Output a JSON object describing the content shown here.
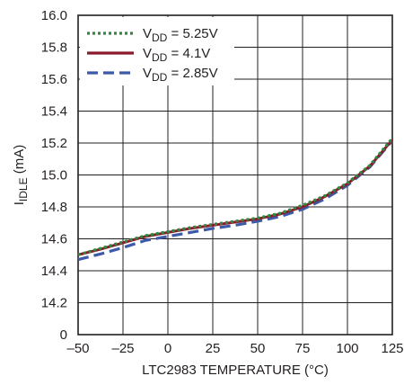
{
  "chart_data": {
    "type": "line",
    "xlabel": "LTC2983 TEMPERATURE (°C)",
    "ylabel": {
      "main": "I",
      "sub": "IDLE",
      "unit": " (mA)"
    },
    "xlim": [
      -50,
      125
    ],
    "ylim": [
      0,
      16.0
    ],
    "y_axis_break": {
      "from": 0,
      "to": 14.2
    },
    "xticks": [
      -50,
      -25,
      0,
      25,
      50,
      75,
      100,
      125
    ],
    "xtick_labels": [
      "–50",
      "–25",
      "0",
      "25",
      "50",
      "75",
      "100",
      "125"
    ],
    "yticks": [
      0,
      14.2,
      14.4,
      14.6,
      14.8,
      15.0,
      15.2,
      15.4,
      15.6,
      15.8,
      16.0
    ],
    "ytick_labels": [
      "0",
      "14.2",
      "14.4",
      "14.6",
      "14.8",
      "15.0",
      "15.2",
      "15.4",
      "15.6",
      "15.8",
      "16.0"
    ],
    "grid": true,
    "legend_position": "top-left",
    "series": [
      {
        "name": {
          "main": "V",
          "sub": "DD",
          "rest": " = 5.25V"
        },
        "color": "#2e8b3e",
        "style": "dotted",
        "x": [
          -50,
          -37.5,
          -25,
          -12.5,
          0,
          12.5,
          25,
          37.5,
          50,
          62.5,
          75,
          87.5,
          100,
          112.5,
          125
        ],
        "y": [
          14.5,
          14.54,
          14.58,
          14.62,
          14.645,
          14.67,
          14.69,
          14.71,
          14.73,
          14.76,
          14.81,
          14.87,
          14.95,
          15.06,
          15.23
        ]
      },
      {
        "name": {
          "main": "V",
          "sub": "DD",
          "rest": " = 4.1V"
        },
        "color": "#8b1a2e",
        "style": "solid",
        "x": [
          -50,
          -37.5,
          -25,
          -12.5,
          0,
          12.5,
          25,
          37.5,
          50,
          62.5,
          75,
          87.5,
          100,
          112.5,
          125
        ],
        "y": [
          14.5,
          14.535,
          14.575,
          14.615,
          14.64,
          14.665,
          14.685,
          14.705,
          14.725,
          14.755,
          14.8,
          14.865,
          14.945,
          15.055,
          15.22
        ]
      },
      {
        "name": {
          "main": "V",
          "sub": "DD",
          "rest": " = 2.85V"
        },
        "color": "#3d5aa8",
        "style": "dashed",
        "x": [
          -50,
          -37.5,
          -25,
          -12.5,
          0,
          12.5,
          25,
          37.5,
          50,
          62.5,
          75,
          87.5,
          100,
          112.5,
          125
        ],
        "y": [
          14.47,
          14.505,
          14.545,
          14.59,
          14.615,
          14.64,
          14.665,
          14.685,
          14.71,
          14.74,
          14.785,
          14.85,
          14.935,
          15.05,
          15.215
        ]
      }
    ]
  }
}
